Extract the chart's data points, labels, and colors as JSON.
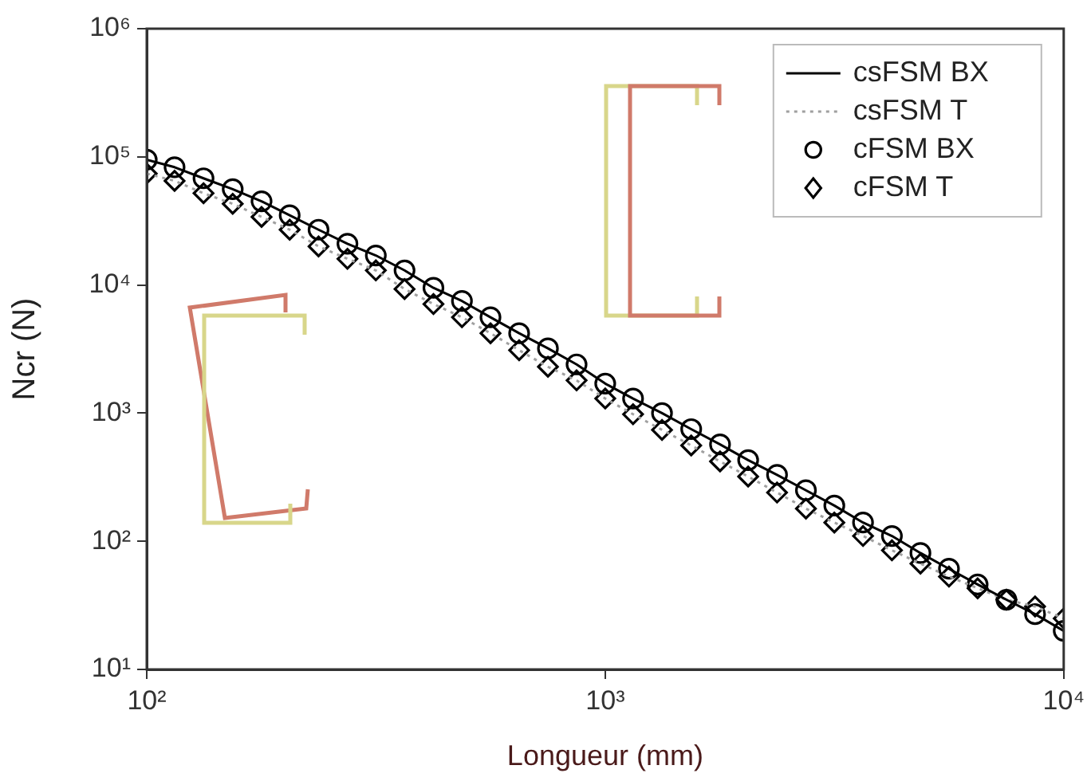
{
  "chart_data": {
    "type": "line",
    "xlabel": "Longueur (mm)",
    "ylabel": "Ncr (N)",
    "log": "xy",
    "x": [
      100,
      115,
      133,
      154,
      178,
      205,
      237,
      274,
      316,
      365,
      422,
      487,
      562,
      649,
      750,
      866,
      1000,
      1150,
      1330,
      1540,
      1780,
      2050,
      2370,
      2740,
      3160,
      3650,
      4220,
      4870,
      5620,
      6490,
      7500,
      8660,
      10000
    ],
    "xlim": [
      100,
      10000
    ],
    "ylim": [
      10,
      1000000
    ],
    "xticks": [
      {
        "value": 100,
        "label": "10²"
      },
      {
        "value": 1000,
        "label": "10³"
      },
      {
        "value": 10000,
        "label": "10⁴"
      }
    ],
    "yticks": [
      {
        "value": 10,
        "label": "10¹"
      },
      {
        "value": 100,
        "label": "10²"
      },
      {
        "value": 1000,
        "label": "10³"
      },
      {
        "value": 10000,
        "label": "10⁴"
      },
      {
        "value": 100000,
        "label": "10⁵"
      },
      {
        "value": 1000000,
        "label": "10⁶"
      }
    ],
    "legend": "top right",
    "series": [
      {
        "name": "csFSM BX",
        "type": "line",
        "color": "#000000",
        "line_style": "solid",
        "marker": "none",
        "values": [
          95000,
          83000,
          68000,
          56000,
          45000,
          35000,
          27000,
          21000,
          17000,
          13000,
          9500,
          7500,
          5600,
          4200,
          3200,
          2400,
          1700,
          1300,
          1000,
          750,
          570,
          430,
          330,
          250,
          190,
          140,
          110,
          81,
          61,
          46,
          35,
          27,
          20
        ]
      },
      {
        "name": "csFSM T",
        "type": "line",
        "color": "#a0a0a0",
        "line_style": "dotted",
        "marker": "none",
        "values": [
          74000,
          65000,
          52000,
          43000,
          34000,
          27000,
          20000,
          16000,
          13000,
          9300,
          7100,
          5600,
          4200,
          3100,
          2300,
          1800,
          1300,
          980,
          740,
          560,
          420,
          320,
          240,
          180,
          140,
          110,
          85,
          67,
          53,
          43,
          35,
          31,
          25
        ]
      },
      {
        "name": "cFSM BX",
        "type": "scatter",
        "color": "#000000",
        "marker": "circle",
        "values": [
          95000,
          83000,
          68000,
          56000,
          45000,
          35000,
          27000,
          21000,
          17000,
          13000,
          9500,
          7500,
          5600,
          4200,
          3200,
          2400,
          1700,
          1300,
          1000,
          750,
          570,
          430,
          330,
          250,
          190,
          140,
          110,
          81,
          61,
          46,
          35,
          27,
          20
        ]
      },
      {
        "name": "cFSM T",
        "type": "scatter",
        "color": "#000000",
        "marker": "diamond",
        "values": [
          74000,
          65000,
          52000,
          43000,
          34000,
          27000,
          20000,
          16000,
          13000,
          9300,
          7100,
          5600,
          4200,
          3100,
          2300,
          1800,
          1300,
          980,
          740,
          560,
          420,
          320,
          240,
          180,
          140,
          110,
          85,
          67,
          53,
          43,
          35,
          31,
          25
        ]
      }
    ]
  }
}
